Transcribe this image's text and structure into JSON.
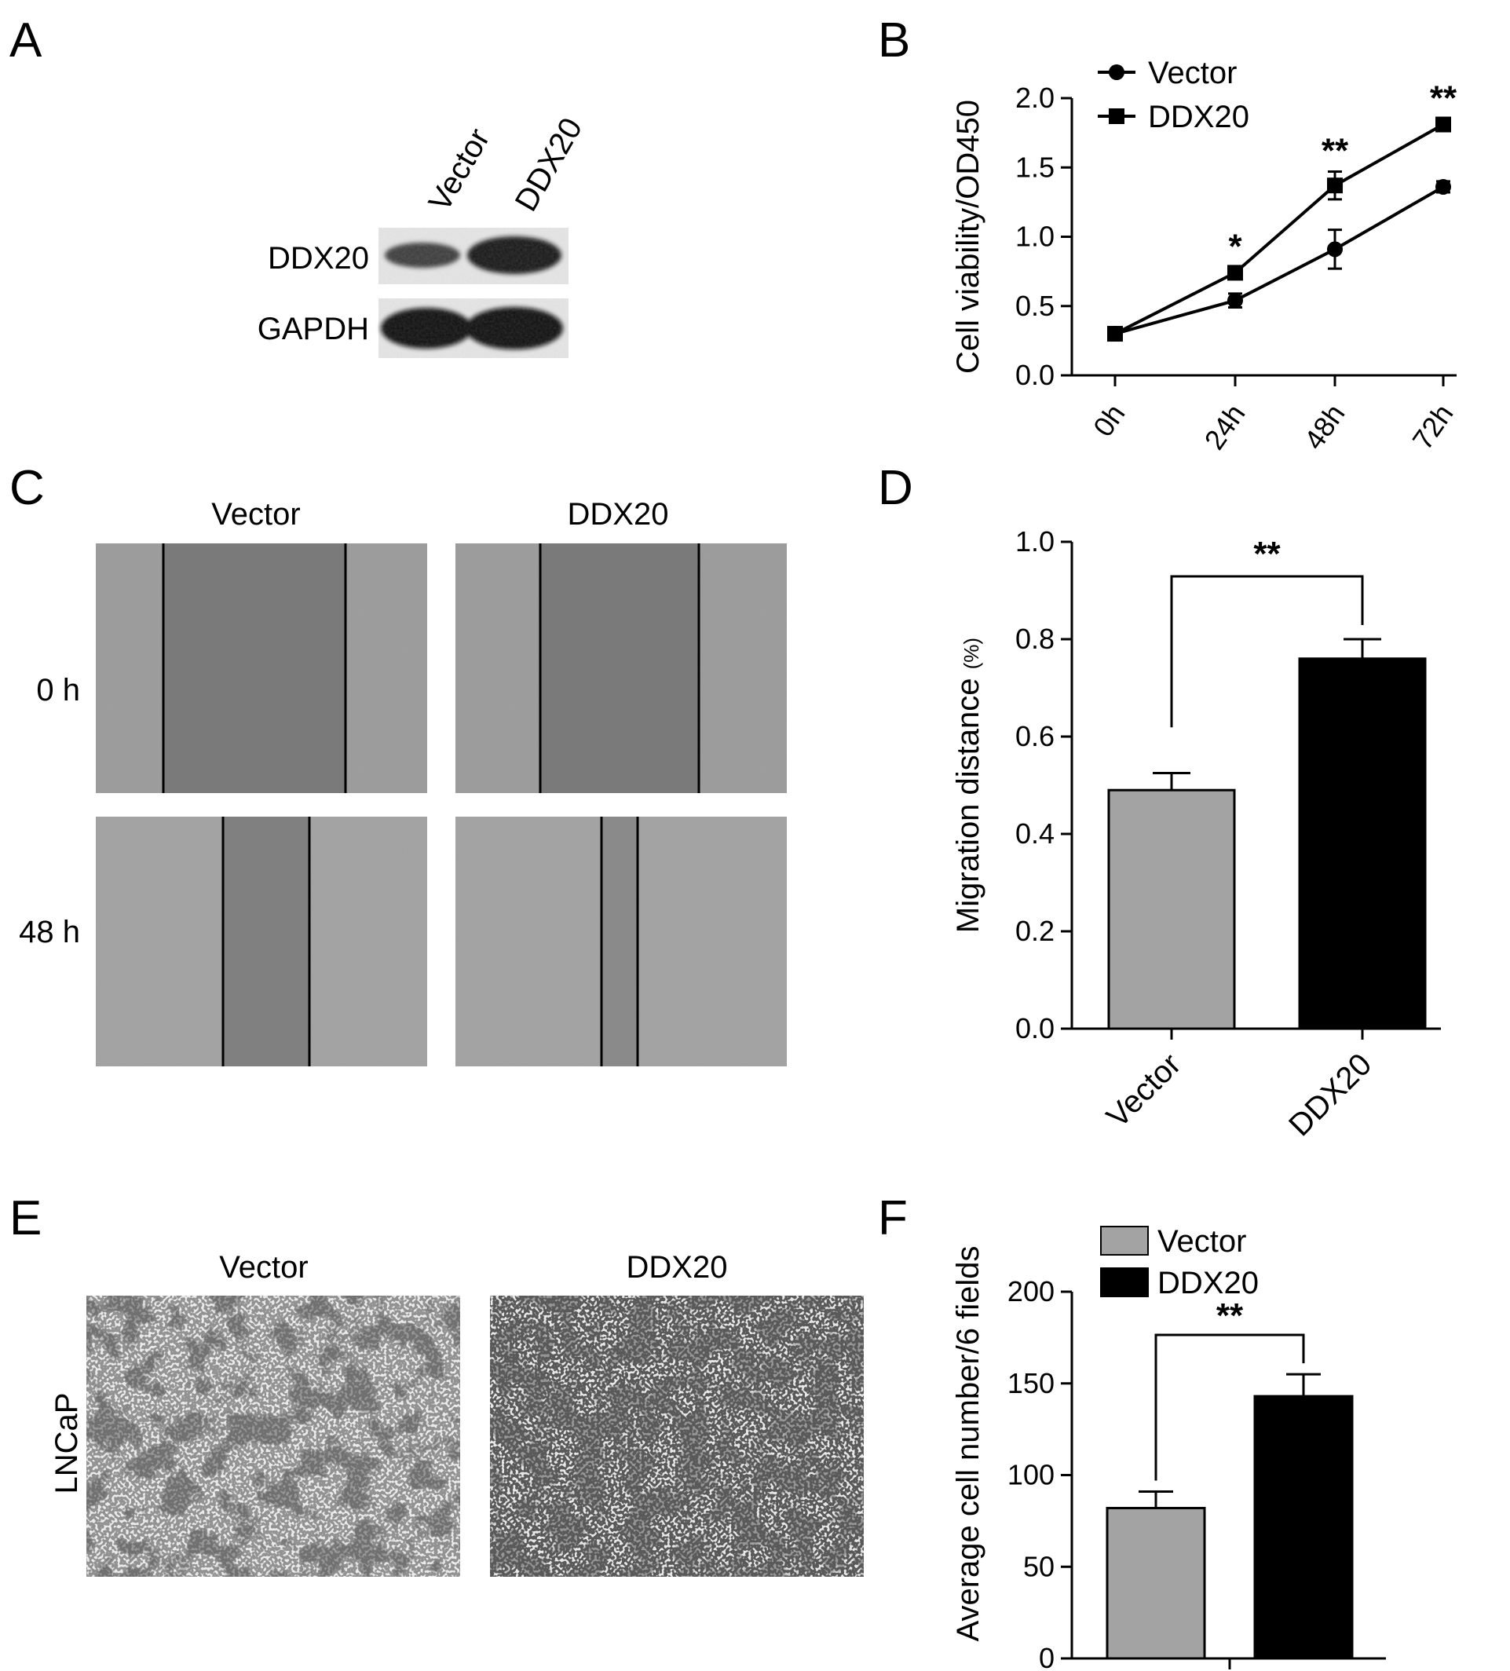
{
  "panels": {
    "A": {
      "label": "A",
      "lanes": [
        "Vector",
        "DDX20"
      ],
      "rows": [
        "DDX20",
        "GAPDH"
      ]
    },
    "B": {
      "label": "B"
    },
    "C": {
      "label": "C",
      "columns": [
        "Vector",
        "DDX20"
      ],
      "rows": [
        "0 h",
        "48 h"
      ]
    },
    "D": {
      "label": "D"
    },
    "E": {
      "label": "E",
      "columns": [
        "Vector",
        "DDX20"
      ],
      "row_label": "LNCaP"
    },
    "F": {
      "label": "F"
    }
  },
  "chart_data": [
    {
      "id": "B",
      "type": "line",
      "categories": [
        "0h",
        "24h",
        "48h",
        "72h"
      ],
      "ylabel": "Cell viability/OD450",
      "ylim": [
        0,
        2.0
      ],
      "yticks": [
        "0.0",
        "0.5",
        "1.0",
        "1.5",
        "2.0"
      ],
      "legend_position": "top-left",
      "series": [
        {
          "name": "Vector",
          "marker": "circle",
          "values": [
            0.3,
            0.54,
            0.91,
            1.36
          ],
          "errors": [
            0.02,
            0.05,
            0.14,
            0.04
          ]
        },
        {
          "name": "DDX20",
          "marker": "square",
          "values": [
            0.3,
            0.74,
            1.37,
            1.81
          ],
          "errors": [
            0.02,
            0.04,
            0.1,
            0.04
          ]
        }
      ],
      "significance": [
        "",
        "*",
        "**",
        "**"
      ]
    },
    {
      "id": "D",
      "type": "bar",
      "categories": [
        "Vector",
        "DDX20"
      ],
      "values": [
        0.49,
        0.76
      ],
      "errors": [
        0.035,
        0.04
      ],
      "colors": [
        "#a3a3a3",
        "#000000"
      ],
      "ylabel": "Migration distance",
      "ylabel_unit": "(%)",
      "ylim": [
        0,
        1.0
      ],
      "yticks": [
        "0.0",
        "0.2",
        "0.4",
        "0.6",
        "0.8",
        "1.0"
      ],
      "significance": "**"
    },
    {
      "id": "F",
      "type": "bar",
      "categories": [
        "Vector",
        "DDX20"
      ],
      "values": [
        82,
        143
      ],
      "errors": [
        9,
        12
      ],
      "colors": [
        "#a3a3a3",
        "#000000"
      ],
      "ylabel": "Average cell number/6 fields",
      "ylim": [
        0,
        200
      ],
      "yticks": [
        "0",
        "50",
        "100",
        "150",
        "200"
      ],
      "legend_position": "top-left",
      "significance": "**"
    }
  ]
}
